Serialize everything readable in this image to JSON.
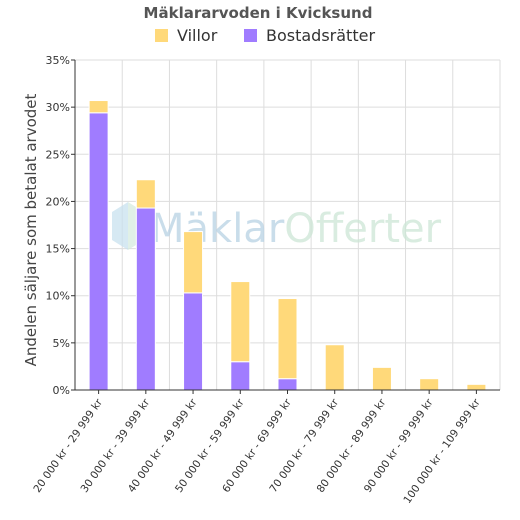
{
  "chart_data": {
    "type": "bar",
    "stacked": true,
    "title": "Mäklararvoden i Kvicksund",
    "ylabel": "Andelen säljare som betalat arvodet",
    "xlabel": "",
    "ylim": [
      0,
      35
    ],
    "y_ticks": [
      "0%",
      "5%",
      "10%",
      "15%",
      "20%",
      "25%",
      "30%",
      "35%"
    ],
    "grid": true,
    "legend_position": "top",
    "categories": [
      "20 000 kr - 29 999 kr",
      "30 000 kr - 39 999 kr",
      "40 000 kr - 49 999 kr",
      "50 000 kr - 59 999 kr",
      "60 000 kr - 69 999 kr",
      "70 000 kr - 79 999 kr",
      "80 000 kr - 89 999 kr",
      "90 000 kr - 99 999 kr",
      "100 000 kr - 109 999 kr"
    ],
    "series": [
      {
        "name": "Bostadsrätter",
        "color": "#a07cff",
        "values": [
          29.4,
          19.3,
          10.3,
          3.0,
          1.2,
          0,
          0,
          0,
          0
        ]
      },
      {
        "name": "Villor",
        "color": "#ffd97a",
        "values": [
          1.3,
          3.0,
          6.5,
          8.5,
          8.5,
          4.8,
          2.4,
          1.2,
          0.6
        ]
      }
    ],
    "legend": [
      {
        "name": "Villor",
        "color": "#ffd97a"
      },
      {
        "name": "Bostadsrätter",
        "color": "#a07cff"
      }
    ]
  },
  "watermark": {
    "part1": "Mäklar",
    "part2": "Offerter",
    "color1": "#b8d2e4",
    "color2": "#cde6d6"
  }
}
